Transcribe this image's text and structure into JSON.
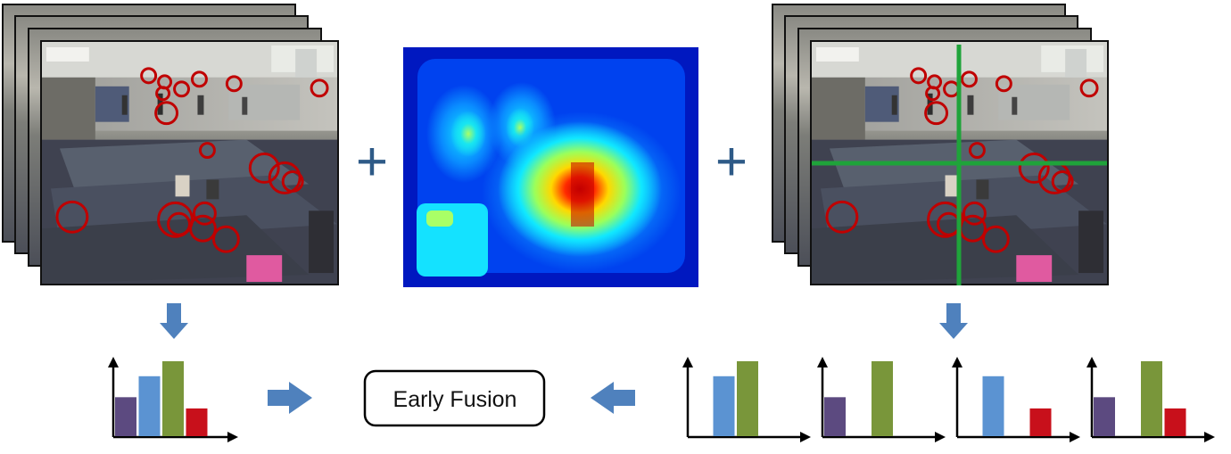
{
  "diagram": {
    "plus_signs": [
      "+",
      "+"
    ],
    "early_fusion_label": "Early Fusion"
  },
  "colors": {
    "bar_purple": "#5c4a80",
    "bar_blue": "#5b93d2",
    "bar_green": "#79963a",
    "bar_red": "#c8101b",
    "arrow_blue": "#4f81bd",
    "plus_blue": "#2e5a87",
    "grid_green": "#1fa33a",
    "circle_red": "#c00000"
  },
  "histograms": {
    "left": {
      "values": [
        0.52,
        0.8,
        1.0,
        0.37
      ]
    },
    "grid_cells": [
      {
        "values": [
          0,
          0.8,
          1.0,
          0
        ]
      },
      {
        "values": [
          0.52,
          0,
          1.0,
          0
        ]
      },
      {
        "values": [
          0,
          0.8,
          0,
          0.37
        ]
      },
      {
        "values": [
          0.52,
          0,
          1.0,
          0.37
        ]
      }
    ]
  }
}
